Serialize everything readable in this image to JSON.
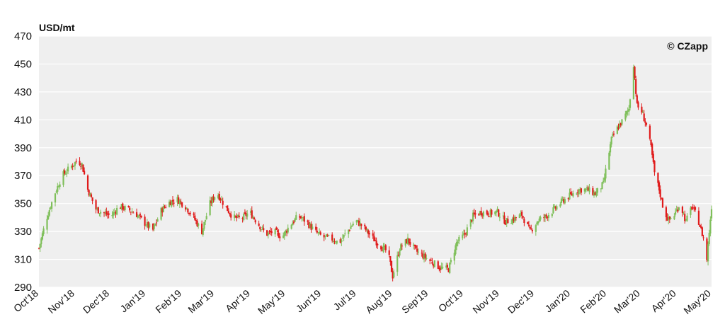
{
  "chart_data": {
    "type": "candlestick",
    "unit_label": "USD/mt",
    "watermark": "© CZapp",
    "ylim": [
      290,
      470
    ],
    "yticks": [
      290,
      310,
      330,
      350,
      370,
      390,
      410,
      430,
      450,
      470
    ],
    "x_start": "2018-10-01",
    "x_end": "2020-05-01",
    "xticks": [
      {
        "label": "Oct'18",
        "date": "2018-10-01"
      },
      {
        "label": "Nov'18",
        "date": "2018-11-01"
      },
      {
        "label": "Dec'18",
        "date": "2018-12-01"
      },
      {
        "label": "Jan'19",
        "date": "2019-01-01"
      },
      {
        "label": "Feb'19",
        "date": "2019-02-01"
      },
      {
        "label": "Mar'19",
        "date": "2019-03-01"
      },
      {
        "label": "Apr'19",
        "date": "2019-04-01"
      },
      {
        "label": "May'19",
        "date": "2019-05-01"
      },
      {
        "label": "Jun'19",
        "date": "2019-06-01"
      },
      {
        "label": "Jul'19",
        "date": "2019-07-01"
      },
      {
        "label": "Aug'19",
        "date": "2019-08-01"
      },
      {
        "label": "Sep'19",
        "date": "2019-09-01"
      },
      {
        "label": "Oct'19",
        "date": "2019-10-01"
      },
      {
        "label": "Nov'19",
        "date": "2019-11-01"
      },
      {
        "label": "Dec'19",
        "date": "2019-12-01"
      },
      {
        "label": "Jan'20",
        "date": "2020-01-01"
      },
      {
        "label": "Feb'20",
        "date": "2020-02-01"
      },
      {
        "label": "Mar'20",
        "date": "2020-03-01"
      },
      {
        "label": "Apr'20",
        "date": "2020-04-01"
      },
      {
        "label": "May'20",
        "date": "2020-05-01"
      }
    ],
    "close_path": [
      [
        "2018-10-01",
        318
      ],
      [
        "2018-10-07",
        338
      ],
      [
        "2018-10-14",
        356
      ],
      [
        "2018-10-21",
        370
      ],
      [
        "2018-10-28",
        376
      ],
      [
        "2018-11-03",
        381
      ],
      [
        "2018-11-07",
        378
      ],
      [
        "2018-11-12",
        360
      ],
      [
        "2018-11-19",
        346
      ],
      [
        "2018-11-26",
        343
      ],
      [
        "2018-12-02",
        341
      ],
      [
        "2018-12-09",
        348
      ],
      [
        "2018-12-16",
        346
      ],
      [
        "2018-12-23",
        343
      ],
      [
        "2018-12-31",
        336
      ],
      [
        "2019-01-07",
        331
      ],
      [
        "2019-01-14",
        345
      ],
      [
        "2019-01-21",
        351
      ],
      [
        "2019-01-28",
        353
      ],
      [
        "2019-02-04",
        348
      ],
      [
        "2019-02-11",
        340
      ],
      [
        "2019-02-18",
        330
      ],
      [
        "2019-02-25",
        350
      ],
      [
        "2019-03-03",
        358
      ],
      [
        "2019-03-10",
        348
      ],
      [
        "2019-03-17",
        340
      ],
      [
        "2019-03-24",
        339
      ],
      [
        "2019-03-31",
        344
      ],
      [
        "2019-04-07",
        336
      ],
      [
        "2019-04-14",
        328
      ],
      [
        "2019-04-21",
        330
      ],
      [
        "2019-04-28",
        326
      ],
      [
        "2019-05-05",
        335
      ],
      [
        "2019-05-12",
        341
      ],
      [
        "2019-05-19",
        337
      ],
      [
        "2019-05-26",
        330
      ],
      [
        "2019-06-02",
        326
      ],
      [
        "2019-06-09",
        325
      ],
      [
        "2019-06-16",
        322
      ],
      [
        "2019-06-23",
        330
      ],
      [
        "2019-06-30",
        338
      ],
      [
        "2019-07-07",
        333
      ],
      [
        "2019-07-14",
        326
      ],
      [
        "2019-07-21",
        320
      ],
      [
        "2019-07-28",
        315
      ],
      [
        "2019-08-01",
        298
      ],
      [
        "2019-08-07",
        318
      ],
      [
        "2019-08-14",
        324
      ],
      [
        "2019-08-21",
        316
      ],
      [
        "2019-08-28",
        312
      ],
      [
        "2019-09-04",
        308
      ],
      [
        "2019-09-11",
        304
      ],
      [
        "2019-09-18",
        303
      ],
      [
        "2019-09-25",
        322
      ],
      [
        "2019-10-02",
        328
      ],
      [
        "2019-10-09",
        341
      ],
      [
        "2019-10-16",
        344
      ],
      [
        "2019-10-23",
        343
      ],
      [
        "2019-10-30",
        344
      ],
      [
        "2019-11-06",
        337
      ],
      [
        "2019-11-13",
        339
      ],
      [
        "2019-11-20",
        342
      ],
      [
        "2019-11-27",
        330
      ],
      [
        "2019-12-04",
        338
      ],
      [
        "2019-12-11",
        341
      ],
      [
        "2019-12-18",
        346
      ],
      [
        "2019-12-25",
        352
      ],
      [
        "2020-01-01",
        356
      ],
      [
        "2020-01-08",
        360
      ],
      [
        "2020-01-15",
        360
      ],
      [
        "2020-01-22",
        357
      ],
      [
        "2020-01-29",
        364
      ],
      [
        "2020-02-01",
        378
      ],
      [
        "2020-02-05",
        396
      ],
      [
        "2020-02-10",
        404
      ],
      [
        "2020-02-15",
        410
      ],
      [
        "2020-02-20",
        418
      ],
      [
        "2020-02-24",
        450
      ],
      [
        "2020-02-27",
        420
      ],
      [
        "2020-03-02",
        416
      ],
      [
        "2020-03-06",
        406
      ],
      [
        "2020-03-10",
        390
      ],
      [
        "2020-03-13",
        372
      ],
      [
        "2020-03-17",
        360
      ],
      [
        "2020-03-21",
        345
      ],
      [
        "2020-03-25",
        338
      ],
      [
        "2020-03-30",
        342
      ],
      [
        "2020-04-04",
        350
      ],
      [
        "2020-04-09",
        337
      ],
      [
        "2020-04-14",
        348
      ],
      [
        "2020-04-19",
        340
      ],
      [
        "2020-04-24",
        325
      ],
      [
        "2020-04-27",
        310
      ],
      [
        "2020-04-29",
        330
      ],
      [
        "2020-05-01",
        348
      ]
    ]
  }
}
